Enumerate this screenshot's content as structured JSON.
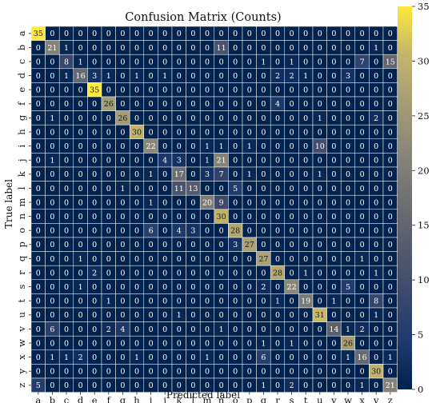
{
  "chart_data": {
    "type": "heatmap",
    "title": "Confusion Matrix (Counts)",
    "xlabel": "Predicted label",
    "ylabel": "True label",
    "labels": [
      "a",
      "b",
      "c",
      "d",
      "e",
      "f",
      "g",
      "h",
      "i",
      "j",
      "k",
      "l",
      "m",
      "n",
      "o",
      "p",
      "q",
      "r",
      "s",
      "t",
      "u",
      "v",
      "w",
      "x",
      "y",
      "z"
    ],
    "matrix": [
      [
        35,
        0,
        0,
        0,
        0,
        0,
        0,
        0,
        0,
        0,
        0,
        0,
        0,
        0,
        0,
        0,
        0,
        0,
        0,
        0,
        0,
        0,
        0,
        0,
        0,
        0
      ],
      [
        0,
        21,
        1,
        0,
        0,
        0,
        0,
        0,
        0,
        0,
        0,
        0,
        0,
        11,
        0,
        0,
        0,
        0,
        0,
        0,
        0,
        0,
        0,
        0,
        1,
        0
      ],
      [
        0,
        0,
        8,
        1,
        0,
        0,
        0,
        0,
        0,
        0,
        0,
        0,
        0,
        0,
        0,
        0,
        1,
        0,
        1,
        0,
        0,
        0,
        0,
        7,
        0,
        15
      ],
      [
        0,
        0,
        1,
        16,
        3,
        1,
        0,
        1,
        0,
        1,
        0,
        0,
        0,
        0,
        0,
        0,
        0,
        2,
        2,
        1,
        0,
        0,
        3,
        0,
        0,
        0
      ],
      [
        0,
        0,
        0,
        0,
        35,
        0,
        0,
        0,
        0,
        0,
        0,
        0,
        0,
        0,
        0,
        0,
        0,
        0,
        0,
        0,
        0,
        0,
        0,
        0,
        0,
        0
      ],
      [
        0,
        0,
        0,
        0,
        0,
        26,
        0,
        0,
        0,
        0,
        0,
        0,
        0,
        0,
        0,
        0,
        0,
        4,
        0,
        0,
        0,
        0,
        0,
        0,
        0,
        0
      ],
      [
        0,
        1,
        0,
        0,
        0,
        0,
        26,
        0,
        0,
        0,
        0,
        0,
        0,
        0,
        0,
        0,
        0,
        0,
        0,
        0,
        1,
        0,
        0,
        0,
        2,
        0
      ],
      [
        0,
        0,
        0,
        0,
        0,
        0,
        0,
        30,
        0,
        0,
        0,
        0,
        0,
        0,
        0,
        0,
        0,
        0,
        0,
        0,
        0,
        0,
        0,
        0,
        0,
        0
      ],
      [
        0,
        0,
        0,
        0,
        0,
        0,
        0,
        0,
        22,
        0,
        0,
        0,
        1,
        1,
        0,
        1,
        0,
        0,
        0,
        0,
        10,
        0,
        0,
        0,
        0,
        0
      ],
      [
        0,
        1,
        0,
        0,
        0,
        0,
        0,
        0,
        0,
        4,
        3,
        0,
        1,
        21,
        0,
        0,
        0,
        0,
        0,
        0,
        0,
        0,
        0,
        0,
        0,
        0
      ],
      [
        0,
        0,
        0,
        0,
        0,
        0,
        0,
        0,
        1,
        0,
        17,
        0,
        3,
        7,
        0,
        1,
        0,
        0,
        0,
        0,
        1,
        0,
        0,
        0,
        0,
        0
      ],
      [
        0,
        0,
        0,
        0,
        0,
        0,
        1,
        0,
        0,
        0,
        11,
        13,
        0,
        0,
        5,
        0,
        0,
        0,
        0,
        0,
        0,
        0,
        0,
        0,
        0,
        0
      ],
      [
        0,
        0,
        0,
        0,
        0,
        0,
        0,
        0,
        1,
        0,
        0,
        0,
        20,
        9,
        0,
        0,
        0,
        0,
        0,
        0,
        0,
        0,
        0,
        0,
        0,
        0
      ],
      [
        0,
        0,
        0,
        0,
        0,
        0,
        0,
        0,
        0,
        0,
        0,
        0,
        0,
        30,
        0,
        0,
        0,
        0,
        0,
        0,
        0,
        0,
        0,
        0,
        0,
        0
      ],
      [
        0,
        0,
        0,
        0,
        0,
        0,
        0,
        0,
        6,
        0,
        4,
        3,
        0,
        0,
        28,
        0,
        0,
        0,
        0,
        0,
        0,
        0,
        0,
        0,
        0,
        0
      ],
      [
        0,
        0,
        0,
        0,
        0,
        0,
        0,
        0,
        0,
        0,
        0,
        0,
        0,
        0,
        3,
        27,
        0,
        0,
        0,
        0,
        0,
        0,
        0,
        0,
        0,
        0
      ],
      [
        0,
        0,
        0,
        1,
        0,
        0,
        0,
        0,
        0,
        0,
        0,
        0,
        0,
        0,
        0,
        0,
        27,
        0,
        0,
        0,
        0,
        0,
        0,
        1,
        0,
        0
      ],
      [
        0,
        0,
        0,
        0,
        2,
        0,
        0,
        0,
        0,
        0,
        0,
        0,
        0,
        0,
        0,
        0,
        0,
        28,
        0,
        1,
        0,
        0,
        0,
        0,
        1,
        0
      ],
      [
        0,
        0,
        0,
        1,
        0,
        0,
        0,
        0,
        0,
        0,
        0,
        0,
        0,
        0,
        0,
        0,
        2,
        0,
        22,
        0,
        0,
        0,
        5,
        0,
        0,
        0
      ],
      [
        0,
        0,
        0,
        0,
        0,
        1,
        0,
        0,
        0,
        0,
        0,
        0,
        0,
        0,
        0,
        0,
        0,
        1,
        0,
        19,
        0,
        1,
        0,
        0,
        8,
        0
      ],
      [
        0,
        0,
        0,
        0,
        0,
        0,
        0,
        0,
        0,
        0,
        1,
        0,
        0,
        0,
        0,
        0,
        0,
        0,
        0,
        0,
        31,
        0,
        0,
        0,
        1,
        0
      ],
      [
        0,
        6,
        0,
        0,
        0,
        2,
        4,
        0,
        0,
        0,
        0,
        0,
        0,
        1,
        0,
        0,
        0,
        0,
        0,
        0,
        0,
        14,
        1,
        2,
        0,
        0
      ],
      [
        0,
        0,
        0,
        0,
        0,
        0,
        0,
        0,
        0,
        0,
        0,
        0,
        0,
        0,
        0,
        0,
        1,
        0,
        1,
        0,
        0,
        0,
        26,
        0,
        0,
        0
      ],
      [
        0,
        1,
        1,
        2,
        0,
        0,
        0,
        1,
        0,
        0,
        0,
        0,
        1,
        0,
        0,
        0,
        6,
        0,
        0,
        0,
        0,
        0,
        1,
        16,
        0,
        1
      ],
      [
        0,
        0,
        0,
        0,
        0,
        0,
        0,
        0,
        0,
        0,
        0,
        0,
        0,
        0,
        0,
        0,
        0,
        0,
        0,
        0,
        0,
        0,
        0,
        0,
        30,
        0
      ],
      [
        5,
        0,
        0,
        0,
        0,
        0,
        0,
        0,
        0,
        0,
        0,
        0,
        0,
        0,
        0,
        0,
        1,
        0,
        2,
        0,
        0,
        0,
        0,
        1,
        0,
        21
      ]
    ],
    "colorbar": {
      "colormap": "cividis",
      "range": [
        0,
        35
      ],
      "ticks": [
        0,
        5,
        10,
        15,
        20,
        25,
        30,
        35
      ]
    },
    "grid": true,
    "cell_annotations": true
  }
}
